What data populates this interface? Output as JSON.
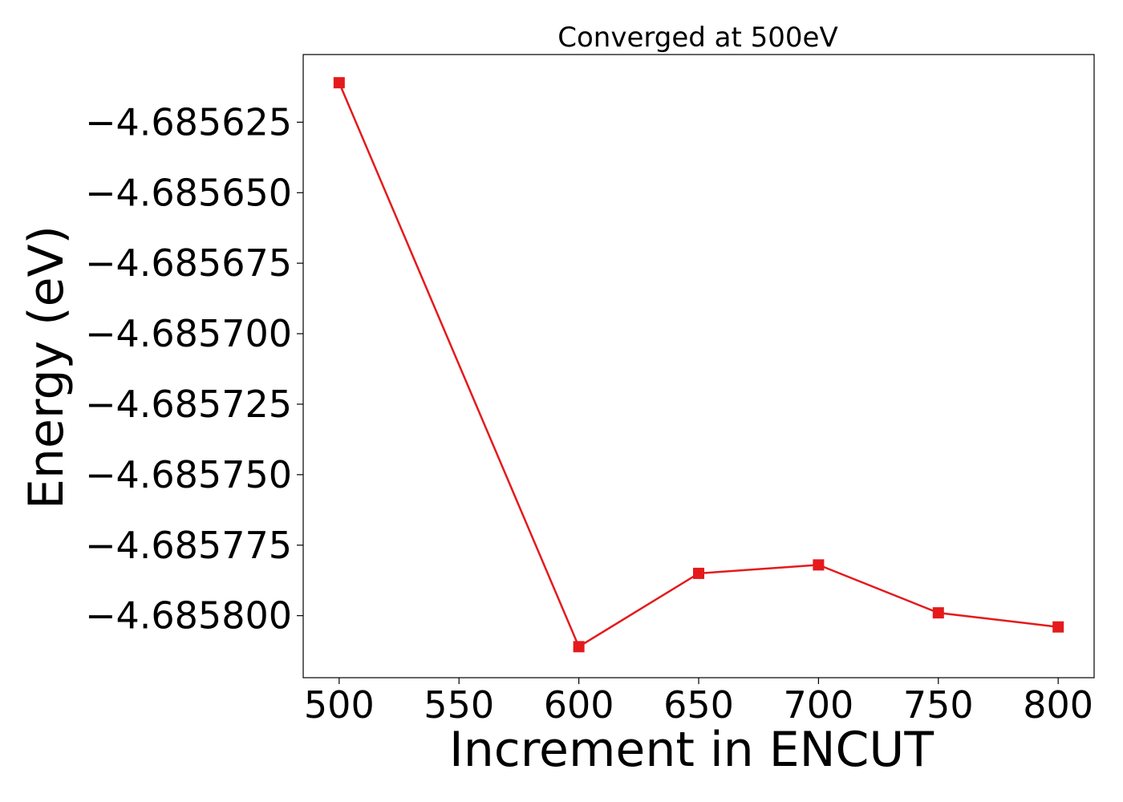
{
  "chart_data": {
    "type": "line",
    "title": "Converged at 500eV",
    "xlabel": "Increment in ENCUT",
    "ylabel": "Energy (eV)",
    "x": [
      500,
      600,
      650,
      700,
      750,
      800
    ],
    "series": [
      {
        "values": [
          -4.685611,
          -4.685811,
          -4.685785,
          -4.685782,
          -4.685799,
          -4.685804
        ],
        "color": "#e41a1c",
        "marker": "square"
      }
    ],
    "xlim": [
      485,
      815
    ],
    "ylim": [
      -4.685822,
      -4.685601
    ],
    "xticks": [
      500,
      550,
      600,
      650,
      700,
      750,
      800
    ],
    "xtick_labels": [
      "500",
      "550",
      "600",
      "650",
      "700",
      "750",
      "800"
    ],
    "yticks": [
      -4.685625,
      -4.68565,
      -4.685675,
      -4.6857,
      -4.685725,
      -4.68575,
      -4.685775,
      -4.6858
    ],
    "ytick_labels": [
      "−4.685625",
      "−4.685650",
      "−4.685675",
      "−4.685700",
      "−4.685725",
      "−4.685750",
      "−4.685775",
      "−4.685800"
    ],
    "grid": false,
    "legend": "none"
  }
}
